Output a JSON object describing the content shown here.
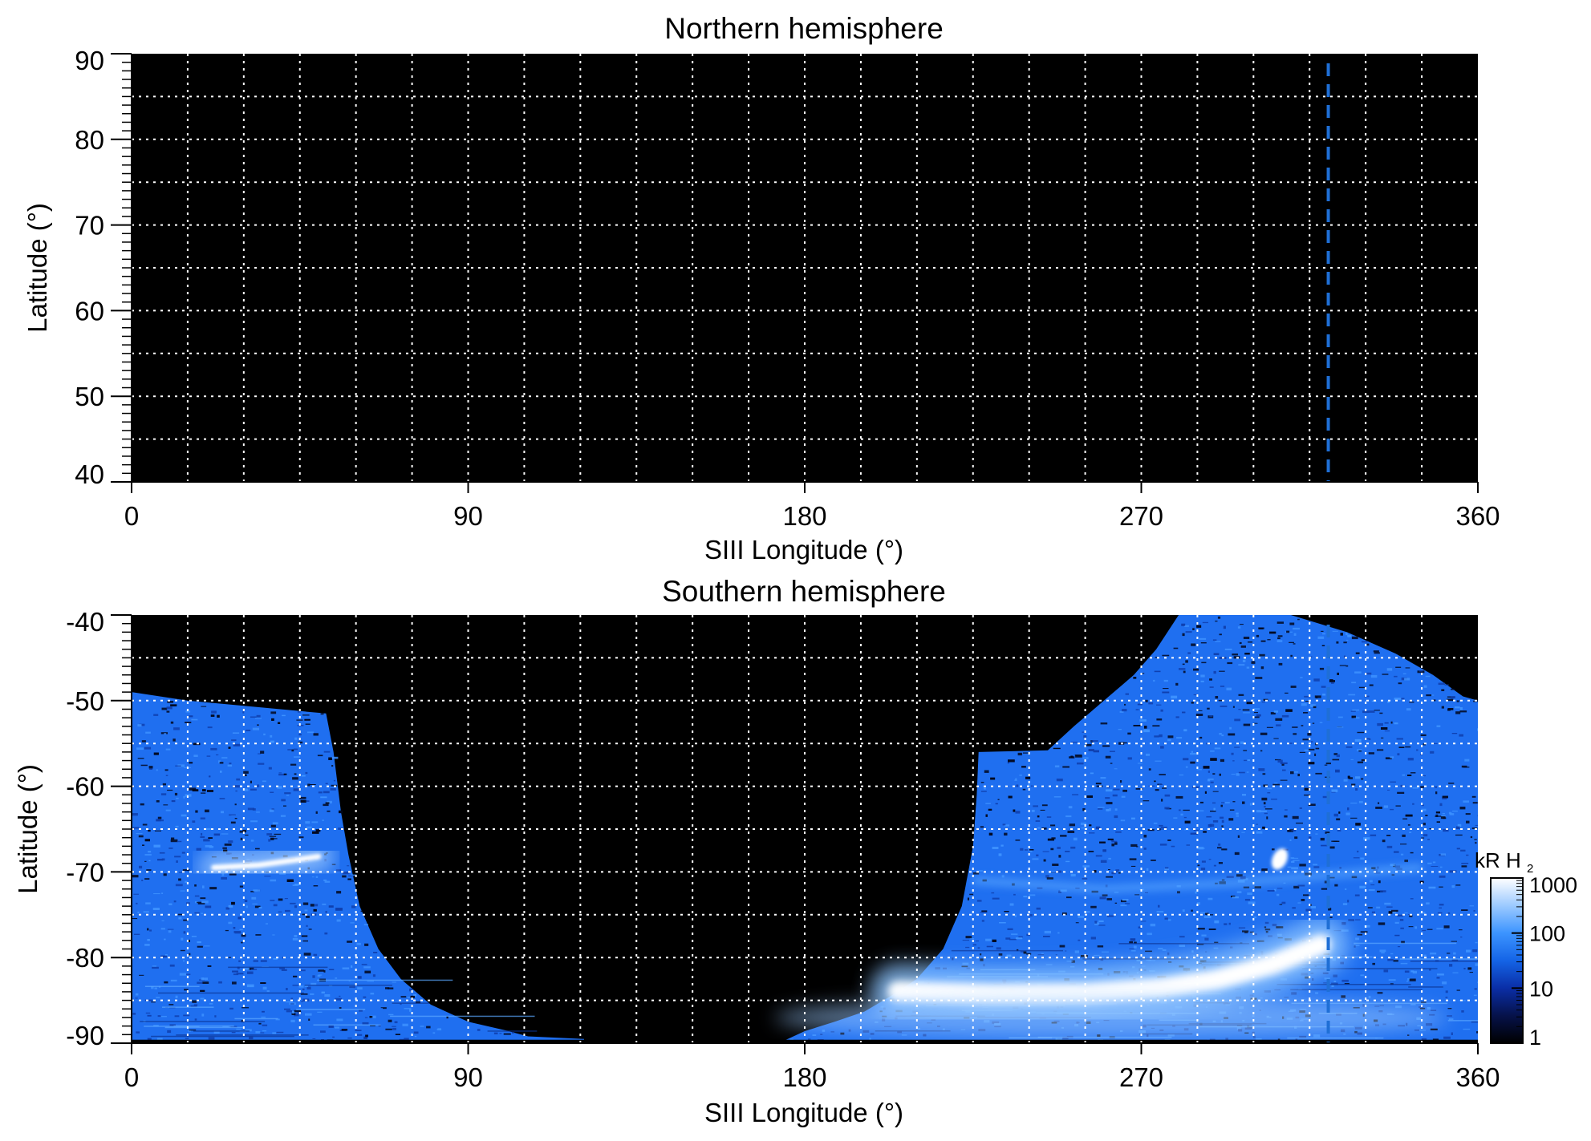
{
  "chart_data": [
    {
      "type": "heatmap",
      "title": "Northern hemisphere",
      "xlabel": "SIII Longitude (°)",
      "ylabel": "Latitude (°)",
      "xlim": [
        0,
        360
      ],
      "ylim": [
        40,
        90
      ],
      "x_ticks": [
        "0",
        "90",
        "180",
        "270",
        "360"
      ],
      "x_tick_values": [
        0,
        90,
        180,
        270,
        360
      ],
      "y_ticks": [
        "40",
        "50",
        "60",
        "70",
        "80",
        "90"
      ],
      "y_tick_values": [
        40,
        50,
        60,
        70,
        80,
        90
      ],
      "grid": true,
      "grid_style": "dotted white",
      "grid_x_step": 15,
      "grid_y_step": 5,
      "reference_line": {
        "x": 320,
        "style": "dashed",
        "color": "#1f6fd6"
      },
      "emission": "none (black)"
    },
    {
      "type": "heatmap",
      "title": "Southern hemisphere",
      "xlabel": "SIII Longitude (°)",
      "ylabel": "Latitude (°)",
      "xlim": [
        0,
        360
      ],
      "ylim": [
        -90,
        -40
      ],
      "x_ticks": [
        "0",
        "90",
        "180",
        "270",
        "360"
      ],
      "x_tick_values": [
        0,
        90,
        180,
        270,
        360
      ],
      "y_ticks": [
        "-90",
        "-80",
        "-70",
        "-60",
        "-50",
        "-40"
      ],
      "y_tick_values": [
        -90,
        -80,
        -70,
        -60,
        -50,
        -40
      ],
      "grid": true,
      "grid_style": "dotted white",
      "grid_x_step": 15,
      "grid_y_step": 5,
      "reference_line": {
        "x": 320,
        "style": "dashed",
        "color": "#1f6fd6"
      },
      "regions": [
        {
          "name": "emission-left",
          "boundary": [
            [
              0,
              -49
            ],
            [
              15,
              -50
            ],
            [
              52,
              -51.5
            ],
            [
              54,
              -56
            ],
            [
              56,
              -63
            ],
            [
              58,
              -68
            ],
            [
              61,
              -74
            ],
            [
              66,
              -79
            ],
            [
              72,
              -82.5
            ],
            [
              80,
              -85.5
            ],
            [
              90,
              -87.5
            ],
            [
              100,
              -88.5
            ],
            [
              106,
              -89.2
            ],
            [
              121,
              -89.5
            ],
            [
              121,
              -90
            ],
            [
              0,
              -90
            ]
          ]
        },
        {
          "name": "emission-right",
          "boundary": [
            [
              175,
              -89.6
            ],
            [
              180,
              -88.6
            ],
            [
              188,
              -87.5
            ],
            [
              196,
              -86.3
            ],
            [
              203,
              -84.5
            ],
            [
              210,
              -82.5
            ],
            [
              217,
              -79
            ],
            [
              222,
              -74
            ],
            [
              225,
              -67
            ],
            [
              226,
              -61
            ],
            [
              226.5,
              -56
            ],
            [
              245,
              -55.8
            ],
            [
              252,
              -53
            ],
            [
              260,
              -50
            ],
            [
              268,
              -47
            ],
            [
              274,
              -44
            ],
            [
              280,
              -40
            ],
            [
              310,
              -40
            ],
            [
              325,
              -42
            ],
            [
              338,
              -44.5
            ],
            [
              348,
              -47
            ],
            [
              356,
              -49.5
            ],
            [
              360,
              -50
            ],
            [
              360,
              -90
            ],
            [
              175,
              -90
            ]
          ]
        }
      ],
      "bright_features": [
        {
          "name": "arc-left",
          "x": [
            22,
            34,
            44,
            50
          ],
          "y": [
            -69.5,
            -69.2,
            -68.6,
            -68.2
          ]
        },
        {
          "name": "main-oval",
          "x": [
            205,
            230,
            255,
            275,
            290,
            305,
            318
          ],
          "y": [
            -84,
            -84.3,
            -84.2,
            -83.6,
            -82.6,
            -80.8,
            -78.5
          ]
        },
        {
          "name": "spot",
          "x": 307,
          "y": -68.5
        },
        {
          "name": "faint-arc",
          "x": [
            225,
            260,
            295,
            330,
            345
          ],
          "y": [
            -71,
            -72,
            -71.3,
            -70,
            -69.5
          ]
        }
      ]
    }
  ],
  "colorbar": {
    "label_main": "kR H",
    "label_sub": "2",
    "scale": "log",
    "range": [
      1,
      1000
    ],
    "ticks": [
      "1",
      "10",
      "100",
      "1000"
    ],
    "tick_values": [
      1,
      10,
      100,
      1000
    ],
    "colors": [
      "#000000",
      "#06124a",
      "#0a2ea6",
      "#1464e6",
      "#3c94ff",
      "#9ccaff",
      "#ffffff"
    ]
  },
  "colors": {
    "background": "#000000",
    "grid": "#ffffff",
    "emission_base": "#1c6ef2",
    "emission_mid": "#3e93ff",
    "emission_bright": "#ffffff",
    "reference_line": "#1f6fd6"
  }
}
